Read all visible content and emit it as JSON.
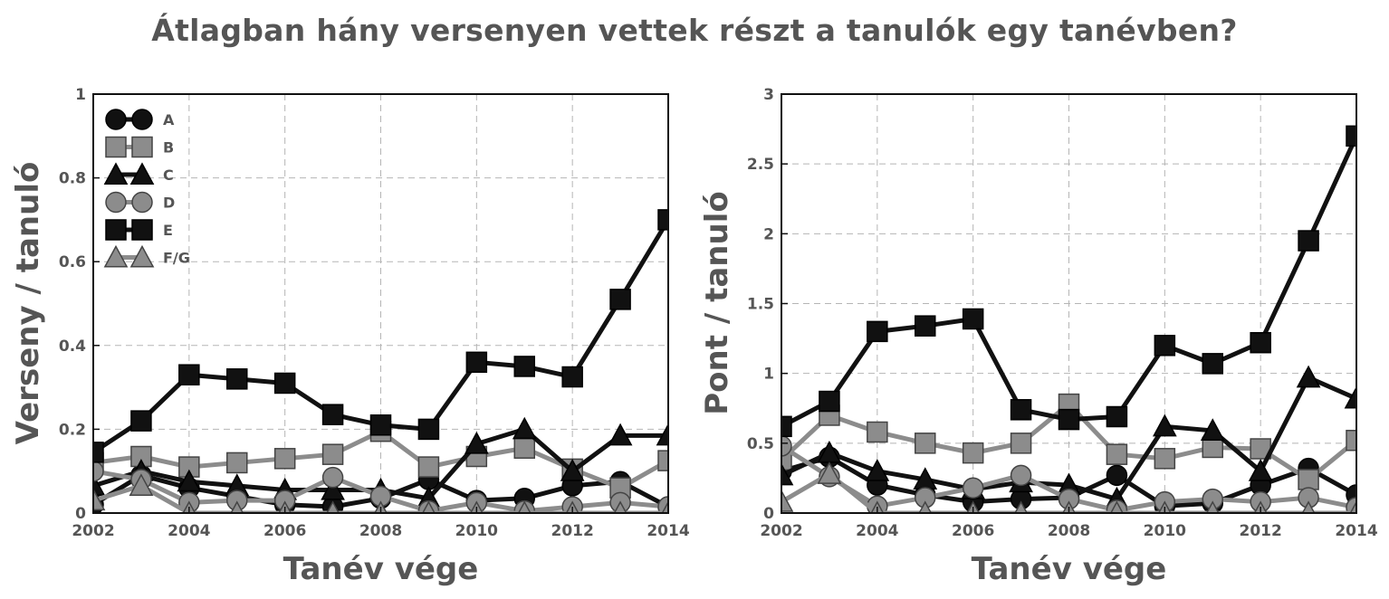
{
  "title": "Átlagban hány versenyen vettek részt a tanulók egy tanévben?",
  "colors": {
    "black": "#111111",
    "gray": "#8c8c8c",
    "text": "#555555"
  },
  "chart_data": [
    {
      "type": "line",
      "xlabel": "Tanév vége",
      "ylabel": "Verseny / tanuló",
      "xlim": [
        2002,
        2014
      ],
      "ylim": [
        0,
        1
      ],
      "xticks": [
        "2002",
        "2004",
        "2006",
        "2008",
        "2010",
        "2012",
        "2014"
      ],
      "yticks": [
        "0",
        "0.2",
        "0.4",
        "0.6",
        "0.8",
        "1"
      ],
      "grid": true,
      "legend_position": "top-left",
      "x": [
        2002,
        2003,
        2004,
        2005,
        2006,
        2007,
        2008,
        2009,
        2010,
        2011,
        2012,
        2013,
        2014
      ],
      "series": [
        {
          "name": "A",
          "color": "black",
          "marker": "circle",
          "values": [
            0.02,
            0.09,
            0.06,
            0.04,
            0.02,
            0.015,
            0.035,
            0.08,
            0.03,
            0.035,
            0.065,
            0.075,
            0.015
          ]
        },
        {
          "name": "B",
          "color": "gray",
          "marker": "square",
          "values": [
            0.12,
            0.135,
            0.11,
            0.12,
            0.13,
            0.14,
            0.195,
            0.11,
            0.135,
            0.155,
            0.105,
            0.06,
            0.125
          ]
        },
        {
          "name": "C",
          "color": "black",
          "marker": "triangle",
          "values": [
            0.065,
            0.1,
            0.075,
            0.065,
            0.055,
            0.055,
            0.055,
            0.035,
            0.165,
            0.2,
            0.1,
            0.185,
            0.185
          ]
        },
        {
          "name": "D",
          "color": "gray",
          "marker": "circle",
          "values": [
            0.1,
            0.08,
            0.025,
            0.03,
            0.03,
            0.085,
            0.04,
            0.005,
            0.025,
            0.005,
            0.015,
            0.025,
            0.015
          ]
        },
        {
          "name": "E",
          "color": "black",
          "marker": "square",
          "values": [
            0.145,
            0.22,
            0.33,
            0.32,
            0.31,
            0.235,
            0.21,
            0.2,
            0.36,
            0.35,
            0.325,
            0.51,
            0.7
          ]
        },
        {
          "name": "F/G",
          "color": "gray",
          "marker": "triangle",
          "values": [
            0.03,
            0.065,
            0.0,
            0.0,
            0.0,
            0.0,
            0.0,
            0.0,
            0.0,
            0.0,
            0.0,
            0.0,
            0.0
          ]
        }
      ]
    },
    {
      "type": "line",
      "xlabel": "Tanév vége",
      "ylabel": "Pont / tanuló",
      "xlim": [
        2002,
        2014
      ],
      "ylim": [
        0,
        3
      ],
      "xticks": [
        "2002",
        "2004",
        "2006",
        "2008",
        "2010",
        "2012",
        "2014"
      ],
      "yticks": [
        "0",
        "0.5",
        "1",
        "1.5",
        "2",
        "2.5",
        "3"
      ],
      "grid": true,
      "x": [
        2002,
        2003,
        2004,
        2005,
        2006,
        2007,
        2008,
        2009,
        2010,
        2011,
        2012,
        2013,
        2014
      ],
      "series": [
        {
          "name": "A",
          "color": "black",
          "marker": "circle",
          "values": [
            0.3,
            0.4,
            0.2,
            0.13,
            0.08,
            0.1,
            0.11,
            0.27,
            0.05,
            0.07,
            0.2,
            0.32,
            0.13
          ]
        },
        {
          "name": "B",
          "color": "gray",
          "marker": "square",
          "values": [
            0.38,
            0.7,
            0.58,
            0.5,
            0.43,
            0.5,
            0.78,
            0.42,
            0.39,
            0.47,
            0.46,
            0.24,
            0.52
          ]
        },
        {
          "name": "C",
          "color": "black",
          "marker": "triangle",
          "values": [
            0.27,
            0.43,
            0.3,
            0.24,
            0.17,
            0.22,
            0.2,
            0.1,
            0.62,
            0.59,
            0.3,
            0.97,
            0.82
          ]
        },
        {
          "name": "D",
          "color": "gray",
          "marker": "circle",
          "values": [
            0.48,
            0.26,
            0.05,
            0.11,
            0.18,
            0.27,
            0.1,
            0.02,
            0.08,
            0.1,
            0.08,
            0.11,
            0.04
          ]
        },
        {
          "name": "E",
          "color": "black",
          "marker": "square",
          "values": [
            0.62,
            0.8,
            1.3,
            1.34,
            1.39,
            0.74,
            0.67,
            0.69,
            1.2,
            1.07,
            1.22,
            1.95,
            2.7
          ]
        },
        {
          "name": "F/G",
          "color": "gray",
          "marker": "triangle",
          "values": [
            0.08,
            0.28,
            0.0,
            0.0,
            0.0,
            0.0,
            0.0,
            0.0,
            0.0,
            0.0,
            0.0,
            0.0,
            0.0
          ]
        }
      ]
    }
  ]
}
